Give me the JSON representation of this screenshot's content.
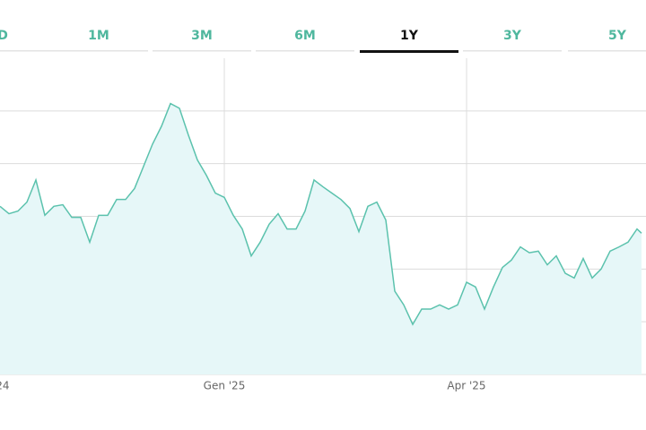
{
  "tabs": {
    "items": [
      "D",
      "1M",
      "3M",
      "6M",
      "1Y",
      "3Y",
      "5Y"
    ],
    "active": 4
  },
  "chart_data": {
    "type": "line",
    "x": [
      0,
      2,
      4,
      6,
      8,
      10,
      12,
      14,
      16,
      18,
      20,
      22,
      24,
      26,
      28,
      30,
      32,
      34,
      36,
      38,
      40,
      42,
      44,
      46,
      48,
      50,
      52,
      54,
      56,
      58,
      60,
      62,
      64,
      66,
      68,
      70,
      72,
      74,
      76,
      78,
      80,
      82,
      84,
      86,
      88,
      90,
      92,
      94,
      96,
      98,
      100,
      102,
      104,
      106,
      108,
      110,
      112,
      114,
      116,
      118,
      120,
      122,
      124,
      126,
      128,
      130,
      132,
      134,
      136,
      138,
      140,
      142,
      143
    ],
    "values": [
      3.19,
      3.05,
      3.1,
      3.27,
      3.69,
      3.02,
      3.19,
      3.22,
      2.98,
      2.98,
      2.51,
      3.02,
      3.02,
      3.32,
      3.32,
      3.53,
      3.95,
      4.37,
      4.71,
      5.14,
      5.05,
      4.54,
      4.07,
      3.78,
      3.44,
      3.36,
      3.02,
      2.76,
      2.25,
      2.51,
      2.85,
      3.05,
      2.76,
      2.76,
      3.1,
      3.69,
      3.56,
      3.44,
      3.32,
      3.15,
      2.71,
      3.19,
      3.27,
      2.93,
      1.58,
      1.32,
      0.95,
      1.24,
      1.24,
      1.32,
      1.24,
      1.32,
      1.75,
      1.66,
      1.24,
      1.66,
      2.03,
      2.17,
      2.42,
      2.31,
      2.34,
      2.08,
      2.25,
      1.92,
      1.83,
      2.2,
      1.83,
      2.0,
      2.34,
      2.42,
      2.51,
      2.76,
      2.68
    ],
    "color": "#5bc2ad",
    "fill": "#e6f7f8",
    "xlim": [
      0,
      144
    ],
    "xticks": [
      {
        "value": 0,
        "label": "'24"
      },
      {
        "value": 50,
        "label": "Gen '25"
      },
      {
        "value": 104,
        "label": "Apr '25"
      }
    ],
    "ylim": [
      0,
      6
    ],
    "yticks": [
      0,
      1,
      2,
      3,
      4,
      5
    ],
    "grid": true
  }
}
